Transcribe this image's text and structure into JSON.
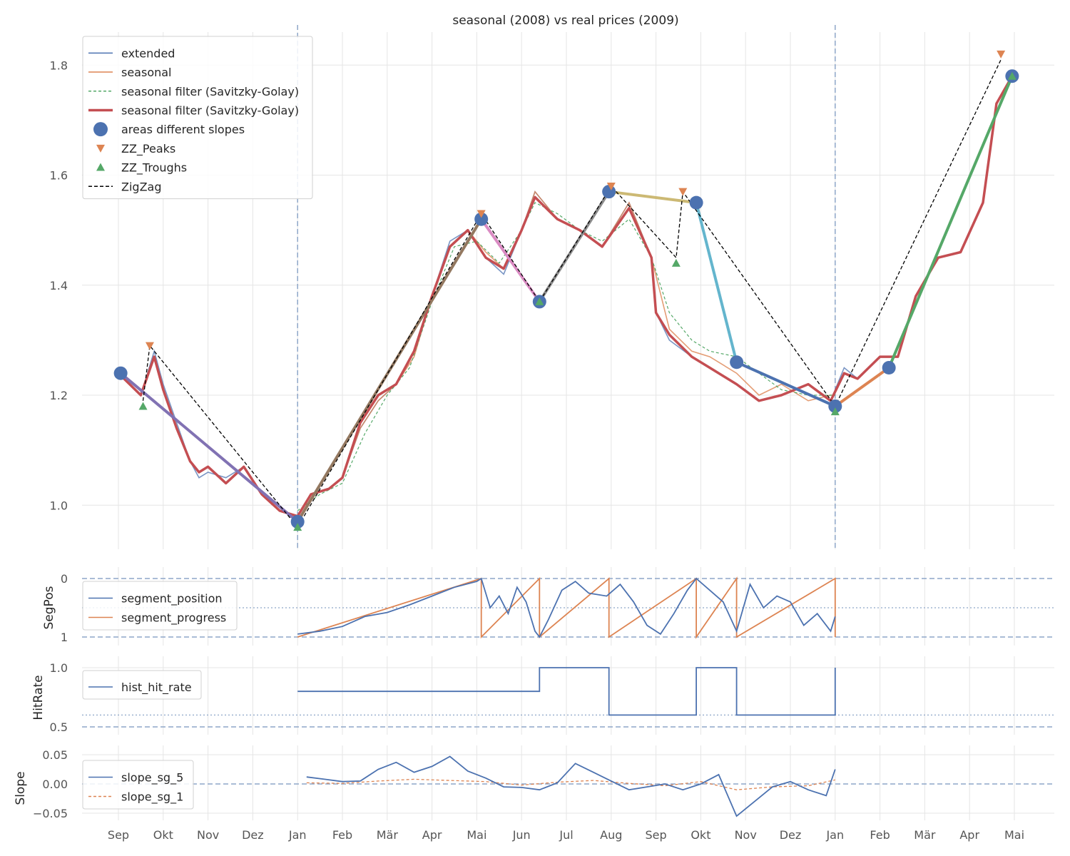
{
  "chart_data": [
    {
      "type": "line",
      "title": "seasonal (2008) vs real prices (2009)",
      "ylabel": "",
      "ylim": [
        0.92,
        1.86
      ],
      "yticks": [
        "1.0",
        "1.2",
        "1.4",
        "1.6",
        "1.8"
      ],
      "vlines_month_index": [
        4,
        16
      ],
      "legend_placement": "top-left",
      "legend": [
        "extended",
        "seasonal",
        "seasonal filter (Savitzky-Golay)",
        "seasonal filter (Savitzky-Golay)",
        "areas different slopes",
        "ZZ_Peaks",
        "ZZ_Troughs",
        "ZigZag"
      ],
      "series": [
        {
          "name": "extended",
          "color": "#4c72b0",
          "x": [
            0.0,
            0.5,
            0.8,
            1.0,
            1.3,
            1.6,
            1.8,
            2.0,
            2.4,
            2.8,
            3.2,
            3.6,
            4.0,
            4.3,
            4.7,
            5.0,
            5.4,
            5.8,
            6.2,
            6.6,
            7.0,
            7.4,
            7.8,
            8.2,
            8.6,
            9.0,
            9.3,
            9.8,
            10.3,
            10.8,
            11.4,
            11.9,
            12.0,
            12.3,
            12.8,
            13.2,
            13.8,
            14.3,
            14.8,
            15.4,
            15.9,
            16.2,
            16.5,
            17.0,
            17.4,
            17.8,
            18.3,
            18.8,
            19.3,
            19.6,
            19.95
          ],
          "y": [
            1.24,
            1.2,
            1.28,
            1.22,
            1.15,
            1.08,
            1.05,
            1.06,
            1.05,
            1.07,
            1.02,
            0.99,
            0.98,
            1.02,
            1.03,
            1.05,
            1.14,
            1.19,
            1.22,
            1.28,
            1.38,
            1.48,
            1.5,
            1.45,
            1.42,
            1.5,
            1.57,
            1.52,
            1.5,
            1.47,
            1.55,
            1.45,
            1.35,
            1.3,
            1.27,
            1.25,
            1.22,
            1.19,
            1.2,
            1.22,
            1.19,
            1.25,
            1.23,
            1.27,
            1.27,
            1.38,
            1.45,
            1.46,
            1.55,
            1.73,
            1.78
          ]
        },
        {
          "name": "seasonal",
          "color": "#dd8452",
          "x": [
            4.0,
            4.3,
            4.7,
            5.0,
            5.4,
            5.8,
            6.2,
            6.6,
            7.0,
            7.4,
            7.8,
            8.2,
            8.6,
            9.0,
            9.3,
            9.8,
            10.3,
            10.8,
            11.4,
            11.9,
            12.3,
            12.8,
            13.2,
            13.8,
            14.3,
            14.8,
            15.4,
            15.9,
            16.0
          ],
          "y": [
            0.98,
            1.02,
            1.03,
            1.05,
            1.14,
            1.19,
            1.22,
            1.27,
            1.38,
            1.47,
            1.5,
            1.46,
            1.43,
            1.5,
            1.57,
            1.52,
            1.5,
            1.47,
            1.55,
            1.45,
            1.32,
            1.28,
            1.27,
            1.24,
            1.2,
            1.22,
            1.19,
            1.2,
            1.2
          ]
        },
        {
          "name": "seasonal filter (Savitzky-Golay)",
          "color": "#55a868",
          "x": [
            4.0,
            4.5,
            5.0,
            5.5,
            6.0,
            6.5,
            7.0,
            7.5,
            8.0,
            8.5,
            9.0,
            9.3,
            9.8,
            10.3,
            10.8,
            11.4,
            11.9,
            12.3,
            12.8,
            13.2,
            13.8,
            14.3,
            14.8,
            15.4,
            15.9,
            16.0
          ],
          "y": [
            0.99,
            1.02,
            1.04,
            1.13,
            1.2,
            1.25,
            1.37,
            1.47,
            1.48,
            1.44,
            1.5,
            1.55,
            1.53,
            1.5,
            1.48,
            1.52,
            1.45,
            1.35,
            1.3,
            1.28,
            1.27,
            1.24,
            1.21,
            1.2,
            1.2,
            1.2
          ]
        },
        {
          "name": "seasonal filter (Savitzky-Golay)",
          "color": "#c44e52",
          "x": [
            0.0,
            0.5,
            0.8,
            1.0,
            1.3,
            1.6,
            1.8,
            2.0,
            2.4,
            2.8,
            3.2,
            3.6,
            4.0,
            4.3,
            4.7,
            5.0,
            5.4,
            5.8,
            6.2,
            6.6,
            7.0,
            7.4,
            7.8,
            8.2,
            8.6,
            9.0,
            9.3,
            9.8,
            10.3,
            10.8,
            11.4,
            11.9,
            12.0,
            12.3,
            12.8,
            13.2,
            13.8,
            14.3,
            14.8,
            15.4,
            15.9,
            16.2,
            16.5,
            17.0,
            17.4,
            17.8,
            18.3,
            18.8,
            19.3,
            19.6,
            19.95
          ],
          "y": [
            1.24,
            1.2,
            1.27,
            1.21,
            1.14,
            1.08,
            1.06,
            1.07,
            1.04,
            1.07,
            1.02,
            0.99,
            0.98,
            1.02,
            1.03,
            1.05,
            1.15,
            1.2,
            1.22,
            1.28,
            1.38,
            1.47,
            1.5,
            1.45,
            1.43,
            1.5,
            1.56,
            1.52,
            1.5,
            1.47,
            1.54,
            1.45,
            1.35,
            1.31,
            1.27,
            1.25,
            1.22,
            1.19,
            1.2,
            1.22,
            1.19,
            1.24,
            1.23,
            1.27,
            1.27,
            1.38,
            1.45,
            1.46,
            1.55,
            1.73,
            1.78
          ]
        }
      ],
      "areas_different_slopes": {
        "points": [
          {
            "x": 0.05,
            "y": 1.24
          },
          {
            "x": 4.0,
            "y": 0.97
          },
          {
            "x": 8.1,
            "y": 1.52
          },
          {
            "x": 9.4,
            "y": 1.37
          },
          {
            "x": 10.95,
            "y": 1.57
          },
          {
            "x": 12.9,
            "y": 1.55
          },
          {
            "x": 13.8,
            "y": 1.26
          },
          {
            "x": 16.0,
            "y": 1.18
          },
          {
            "x": 17.2,
            "y": 1.25
          },
          {
            "x": 19.95,
            "y": 1.78
          }
        ],
        "segments": [
          {
            "x": [
              0.05,
              4.0
            ],
            "y": [
              1.24,
              0.97
            ],
            "color": "#8172b3"
          },
          {
            "x": [
              4.0,
              8.1
            ],
            "y": [
              0.97,
              1.52
            ],
            "color": "#937860"
          },
          {
            "x": [
              8.1,
              9.4
            ],
            "y": [
              1.52,
              1.37
            ],
            "color": "#da8bc3"
          },
          {
            "x": [
              9.4,
              10.95
            ],
            "y": [
              1.37,
              1.57
            ],
            "color": "#8c8c8c"
          },
          {
            "x": [
              10.95,
              12.9
            ],
            "y": [
              1.57,
              1.55
            ],
            "color": "#ccb974"
          },
          {
            "x": [
              12.9,
              13.8
            ],
            "y": [
              1.55,
              1.26
            ],
            "color": "#64b5cd"
          },
          {
            "x": [
              13.8,
              16.0
            ],
            "y": [
              1.26,
              1.18
            ],
            "color": "#4c72b0"
          },
          {
            "x": [
              16.0,
              17.2
            ],
            "y": [
              1.18,
              1.25
            ],
            "color": "#dd8452"
          },
          {
            "x": [
              17.2,
              19.95
            ],
            "y": [
              1.25,
              1.78
            ],
            "color": "#55a868"
          }
        ]
      },
      "zz_peaks": [
        {
          "x": 0.7,
          "y": 1.29
        },
        {
          "x": 8.1,
          "y": 1.53
        },
        {
          "x": 11.0,
          "y": 1.58
        },
        {
          "x": 12.6,
          "y": 1.57
        },
        {
          "x": 19.7,
          "y": 1.82
        }
      ],
      "zz_troughs": [
        {
          "x": 0.55,
          "y": 1.18
        },
        {
          "x": 4.0,
          "y": 0.96
        },
        {
          "x": 9.4,
          "y": 1.37
        },
        {
          "x": 12.45,
          "y": 1.44
        },
        {
          "x": 16.0,
          "y": 1.17
        },
        {
          "x": 19.95,
          "y": 1.78
        }
      ],
      "zigzag": {
        "x": [
          0.55,
          0.7,
          4.0,
          8.1,
          9.4,
          11.0,
          12.45,
          12.6,
          16.0,
          19.7
        ],
        "y": [
          1.19,
          1.29,
          0.96,
          1.53,
          1.37,
          1.58,
          1.45,
          1.57,
          1.18,
          1.81
        ]
      }
    },
    {
      "type": "line",
      "ylabel": "SegPos",
      "ylim": [
        0,
        1
      ],
      "yticks": [
        "0",
        "1"
      ],
      "legend": [
        "segment_position",
        "segment_progress"
      ],
      "series": [
        {
          "name": "segment_position",
          "color": "#4c72b0",
          "x": [
            4.0,
            4.5,
            5.0,
            5.5,
            6.0,
            6.5,
            7.0,
            7.5,
            8.0,
            8.1,
            8.3,
            8.5,
            8.7,
            8.9,
            9.1,
            9.3,
            9.4,
            9.6,
            9.9,
            10.2,
            10.5,
            10.9,
            11.2,
            11.5,
            11.8,
            12.1,
            12.4,
            12.7,
            12.9,
            13.2,
            13.5,
            13.8,
            14.1,
            14.4,
            14.7,
            15.0,
            15.3,
            15.6,
            15.9,
            16.0
          ],
          "y": [
            0.05,
            0.1,
            0.18,
            0.35,
            0.42,
            0.55,
            0.7,
            0.85,
            0.95,
            1.0,
            0.5,
            0.7,
            0.4,
            0.85,
            0.6,
            0.1,
            0.0,
            0.3,
            0.8,
            0.95,
            0.75,
            0.7,
            0.9,
            0.6,
            0.2,
            0.05,
            0.4,
            0.8,
            1.0,
            0.8,
            0.6,
            0.1,
            0.9,
            0.5,
            0.7,
            0.6,
            0.2,
            0.4,
            0.1,
            0.35
          ]
        },
        {
          "name": "segment_progress",
          "color": "#dd8452",
          "x": [
            4.0,
            8.1,
            8.1,
            9.4,
            9.4,
            10.95,
            10.95,
            12.9,
            12.9,
            13.8,
            13.8,
            16.0,
            16.0
          ],
          "y": [
            0,
            1,
            0,
            1,
            0,
            1,
            0,
            1,
            0,
            1,
            0,
            1,
            0
          ]
        }
      ],
      "hlines": [
        0,
        0.5,
        1
      ]
    },
    {
      "type": "line",
      "ylabel": "HitRate",
      "ylim": [
        0.5,
        1.0
      ],
      "yticks": [
        "0.5",
        "1.0"
      ],
      "legend": [
        "hist_hit_rate"
      ],
      "series": [
        {
          "name": "hist_hit_rate",
          "color": "#4c72b0",
          "x": [
            4.0,
            9.4,
            9.4,
            10.95,
            10.95,
            12.9,
            12.9,
            13.8,
            13.8,
            16.0,
            16.0
          ],
          "y": [
            0.8,
            0.8,
            1.0,
            1.0,
            0.6,
            0.6,
            1.0,
            1.0,
            0.6,
            0.6,
            1.0
          ]
        }
      ],
      "hlines": [
        0.5,
        0.6
      ]
    },
    {
      "type": "line",
      "ylabel": "Slope",
      "ylim": [
        -0.05,
        0.05
      ],
      "yticks": [
        "0.05",
        "0.00",
        "−0.05"
      ],
      "legend": [
        "slope_sg_5",
        "slope_sg_1"
      ],
      "series": [
        {
          "name": "slope_sg_5",
          "color": "#4c72b0",
          "x": [
            4.2,
            4.6,
            5.0,
            5.4,
            5.8,
            6.2,
            6.6,
            7.0,
            7.4,
            7.8,
            8.2,
            8.6,
            9.0,
            9.4,
            9.8,
            10.2,
            10.6,
            11.0,
            11.4,
            11.8,
            12.2,
            12.6,
            13.0,
            13.4,
            13.8,
            14.2,
            14.6,
            15.0,
            15.4,
            15.8,
            16.0
          ],
          "y": [
            0.012,
            0.008,
            0.004,
            0.005,
            0.025,
            0.037,
            0.02,
            0.03,
            0.047,
            0.022,
            0.01,
            -0.005,
            -0.006,
            -0.01,
            0.002,
            0.035,
            0.02,
            0.005,
            -0.01,
            -0.005,
            0.0,
            -0.01,
            0.0,
            0.016,
            -0.055,
            -0.03,
            -0.005,
            0.004,
            -0.01,
            -0.02,
            0.025
          ]
        },
        {
          "name": "slope_sg_1",
          "color": "#dd8452",
          "x": [
            4.2,
            5.0,
            5.8,
            6.6,
            7.4,
            8.2,
            9.0,
            9.8,
            10.6,
            11.4,
            12.2,
            13.0,
            13.8,
            14.6,
            15.4,
            16.0
          ],
          "y": [
            0.002,
            0.001,
            0.005,
            0.008,
            0.006,
            0.004,
            -0.002,
            0.003,
            0.006,
            0.001,
            -0.003,
            0.004,
            -0.01,
            -0.005,
            -0.003,
            0.007
          ]
        }
      ],
      "hlines": [
        0
      ]
    }
  ],
  "x_axis": {
    "ticks": [
      "Sep",
      "Okt",
      "Nov",
      "Dez",
      "Jan",
      "Feb",
      "Mär",
      "Apr",
      "Mai",
      "Jun",
      "Jul",
      "Aug",
      "Sep",
      "Okt",
      "Nov",
      "Dez",
      "Jan",
      "Feb",
      "Mär",
      "Apr",
      "Mai"
    ]
  }
}
